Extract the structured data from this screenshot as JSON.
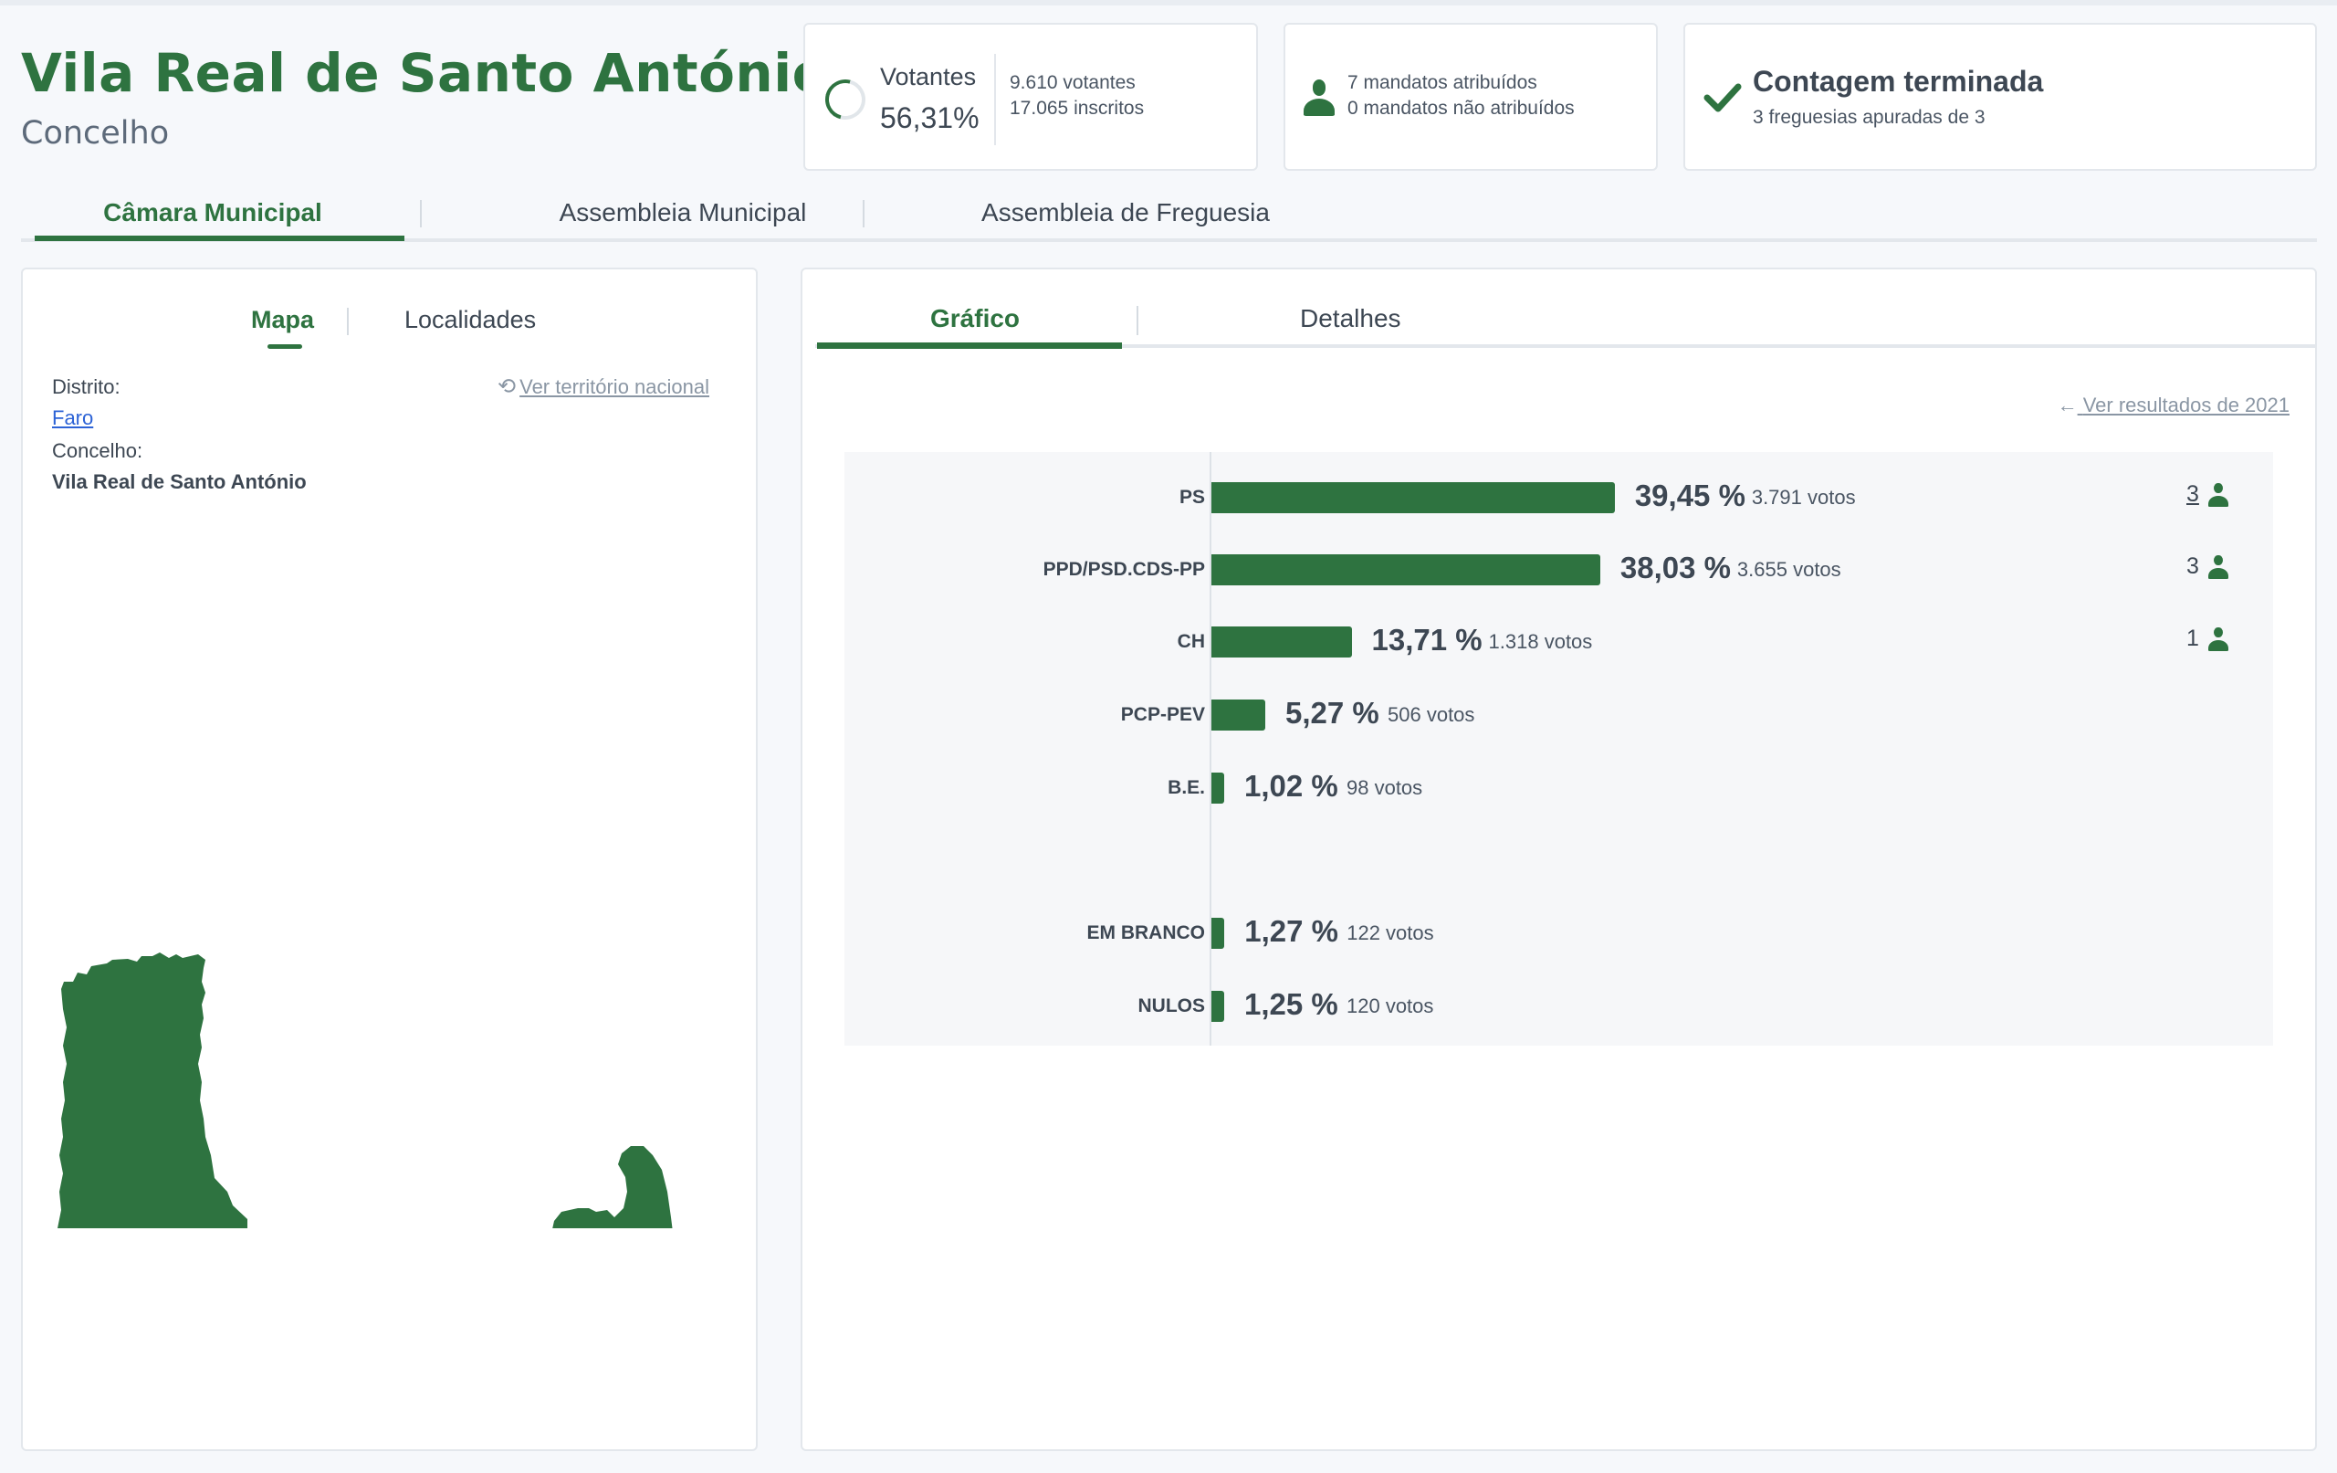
{
  "header": {
    "title": "Vila Real de Santo António",
    "subtitle": "Concelho"
  },
  "cards": {
    "turnout": {
      "label": "Votantes",
      "percent": "56,31%",
      "voters": "9.610 votantes",
      "registered": "17.065 inscritos"
    },
    "mandates": {
      "assigned": "7 mandatos atribuídos",
      "unassigned": "0 mandatos não atribuídos",
      "icon": "person-icon"
    },
    "count": {
      "title": "Contagem terminada",
      "detail": "3 freguesias apuradas de 3",
      "icon": "check-icon"
    }
  },
  "main_tabs": [
    {
      "label": "Câmara Municipal",
      "active": true
    },
    {
      "label": "Assembleia Municipal",
      "active": false
    },
    {
      "label": "Assembleia de Freguesia",
      "active": false
    }
  ],
  "left_panel": {
    "tabs": [
      {
        "label": "Mapa",
        "active": true
      },
      {
        "label": "Localidades",
        "active": false
      }
    ],
    "distrito_label": "Distrito:",
    "distrito_value": "Faro",
    "concelho_label": "Concelho:",
    "concelho_value": "Vila Real de Santo António",
    "ver_nacional": "Ver território nacional",
    "map_color": "#2e7340"
  },
  "right_panel": {
    "tabs": [
      {
        "label": "Gráfico",
        "active": true
      },
      {
        "label": "Detalhes",
        "active": false
      }
    ],
    "ver_resultados": "Ver resultados de 2021"
  },
  "chart_data": {
    "type": "bar",
    "orientation": "horizontal",
    "color": "#2e7340",
    "categories": [
      "PS",
      "PPD/PSD.CDS-PP",
      "CH",
      "PCP-PEV",
      "B.E.",
      "EM BRANCO",
      "NULOS"
    ],
    "values": [
      39.45,
      38.03,
      13.71,
      5.27,
      1.02,
      1.27,
      1.25
    ],
    "pct_labels": [
      "39,45 %",
      "38,03 %",
      "13,71 %",
      "5,27 %",
      "1,02 %",
      "1,27 %",
      "1,25 %"
    ],
    "votes_labels": [
      "3.791 votos",
      "3.655 votos",
      "1.318 votos",
      "506 votos",
      "98 votos",
      "122 votos",
      "120 votos"
    ],
    "mandates": [
      "3",
      "3",
      "1",
      "",
      "",
      "",
      ""
    ]
  }
}
